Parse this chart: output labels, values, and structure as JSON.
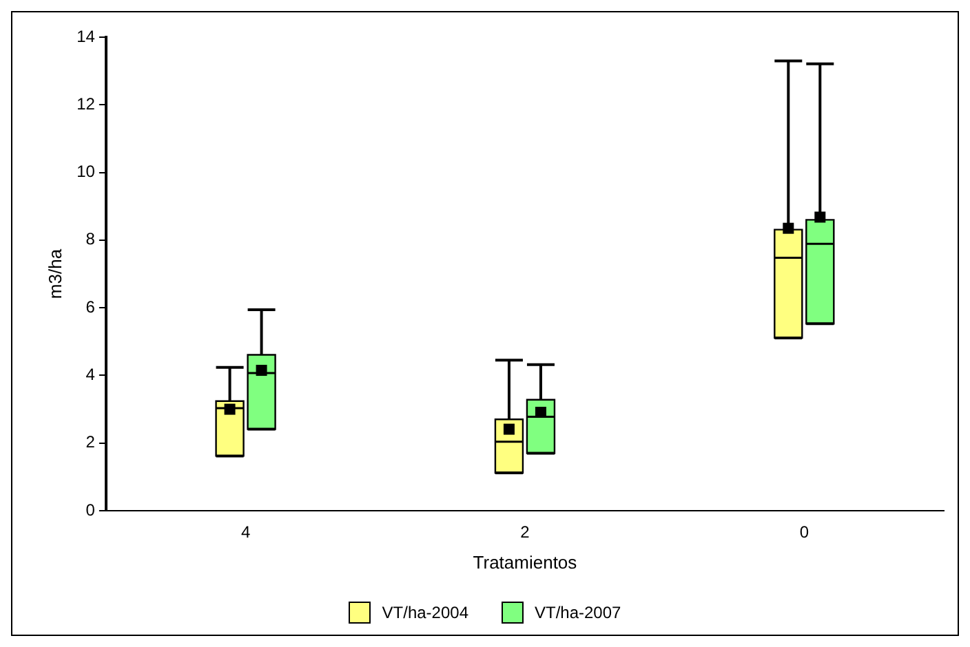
{
  "chart_data": {
    "type": "box",
    "xlabel": "Tratamientos",
    "ylabel": "m3/ha",
    "categories": [
      "4",
      "2",
      "0"
    ],
    "ylim": [
      0,
      14
    ],
    "yticks": [
      0,
      2,
      4,
      6,
      8,
      10,
      12,
      14
    ],
    "grid": false,
    "legend": "bottom",
    "series": [
      {
        "name": "VT/ha-2004",
        "color": "#ffff80",
        "boxes": [
          {
            "low": 1.62,
            "q1": 1.62,
            "median": 3.03,
            "q3": 3.24,
            "high": 4.24,
            "mean": 3.0
          },
          {
            "low": 1.12,
            "q1": 1.12,
            "median": 2.04,
            "q3": 2.7,
            "high": 4.45,
            "mean": 2.41
          },
          {
            "low": 5.11,
            "q1": 5.11,
            "median": 7.48,
            "q3": 8.31,
            "high": 13.3,
            "mean": 8.35
          }
        ]
      },
      {
        "name": "VT/ha-2007",
        "color": "#80ff80",
        "boxes": [
          {
            "low": 2.41,
            "q1": 2.41,
            "median": 4.07,
            "q3": 4.61,
            "high": 5.94,
            "mean": 4.15
          },
          {
            "low": 1.7,
            "q1": 1.7,
            "median": 2.78,
            "q3": 3.28,
            "high": 4.32,
            "mean": 2.91
          },
          {
            "low": 5.53,
            "q1": 5.53,
            "median": 7.89,
            "q3": 8.6,
            "high": 13.21,
            "mean": 8.68
          }
        ]
      }
    ]
  }
}
